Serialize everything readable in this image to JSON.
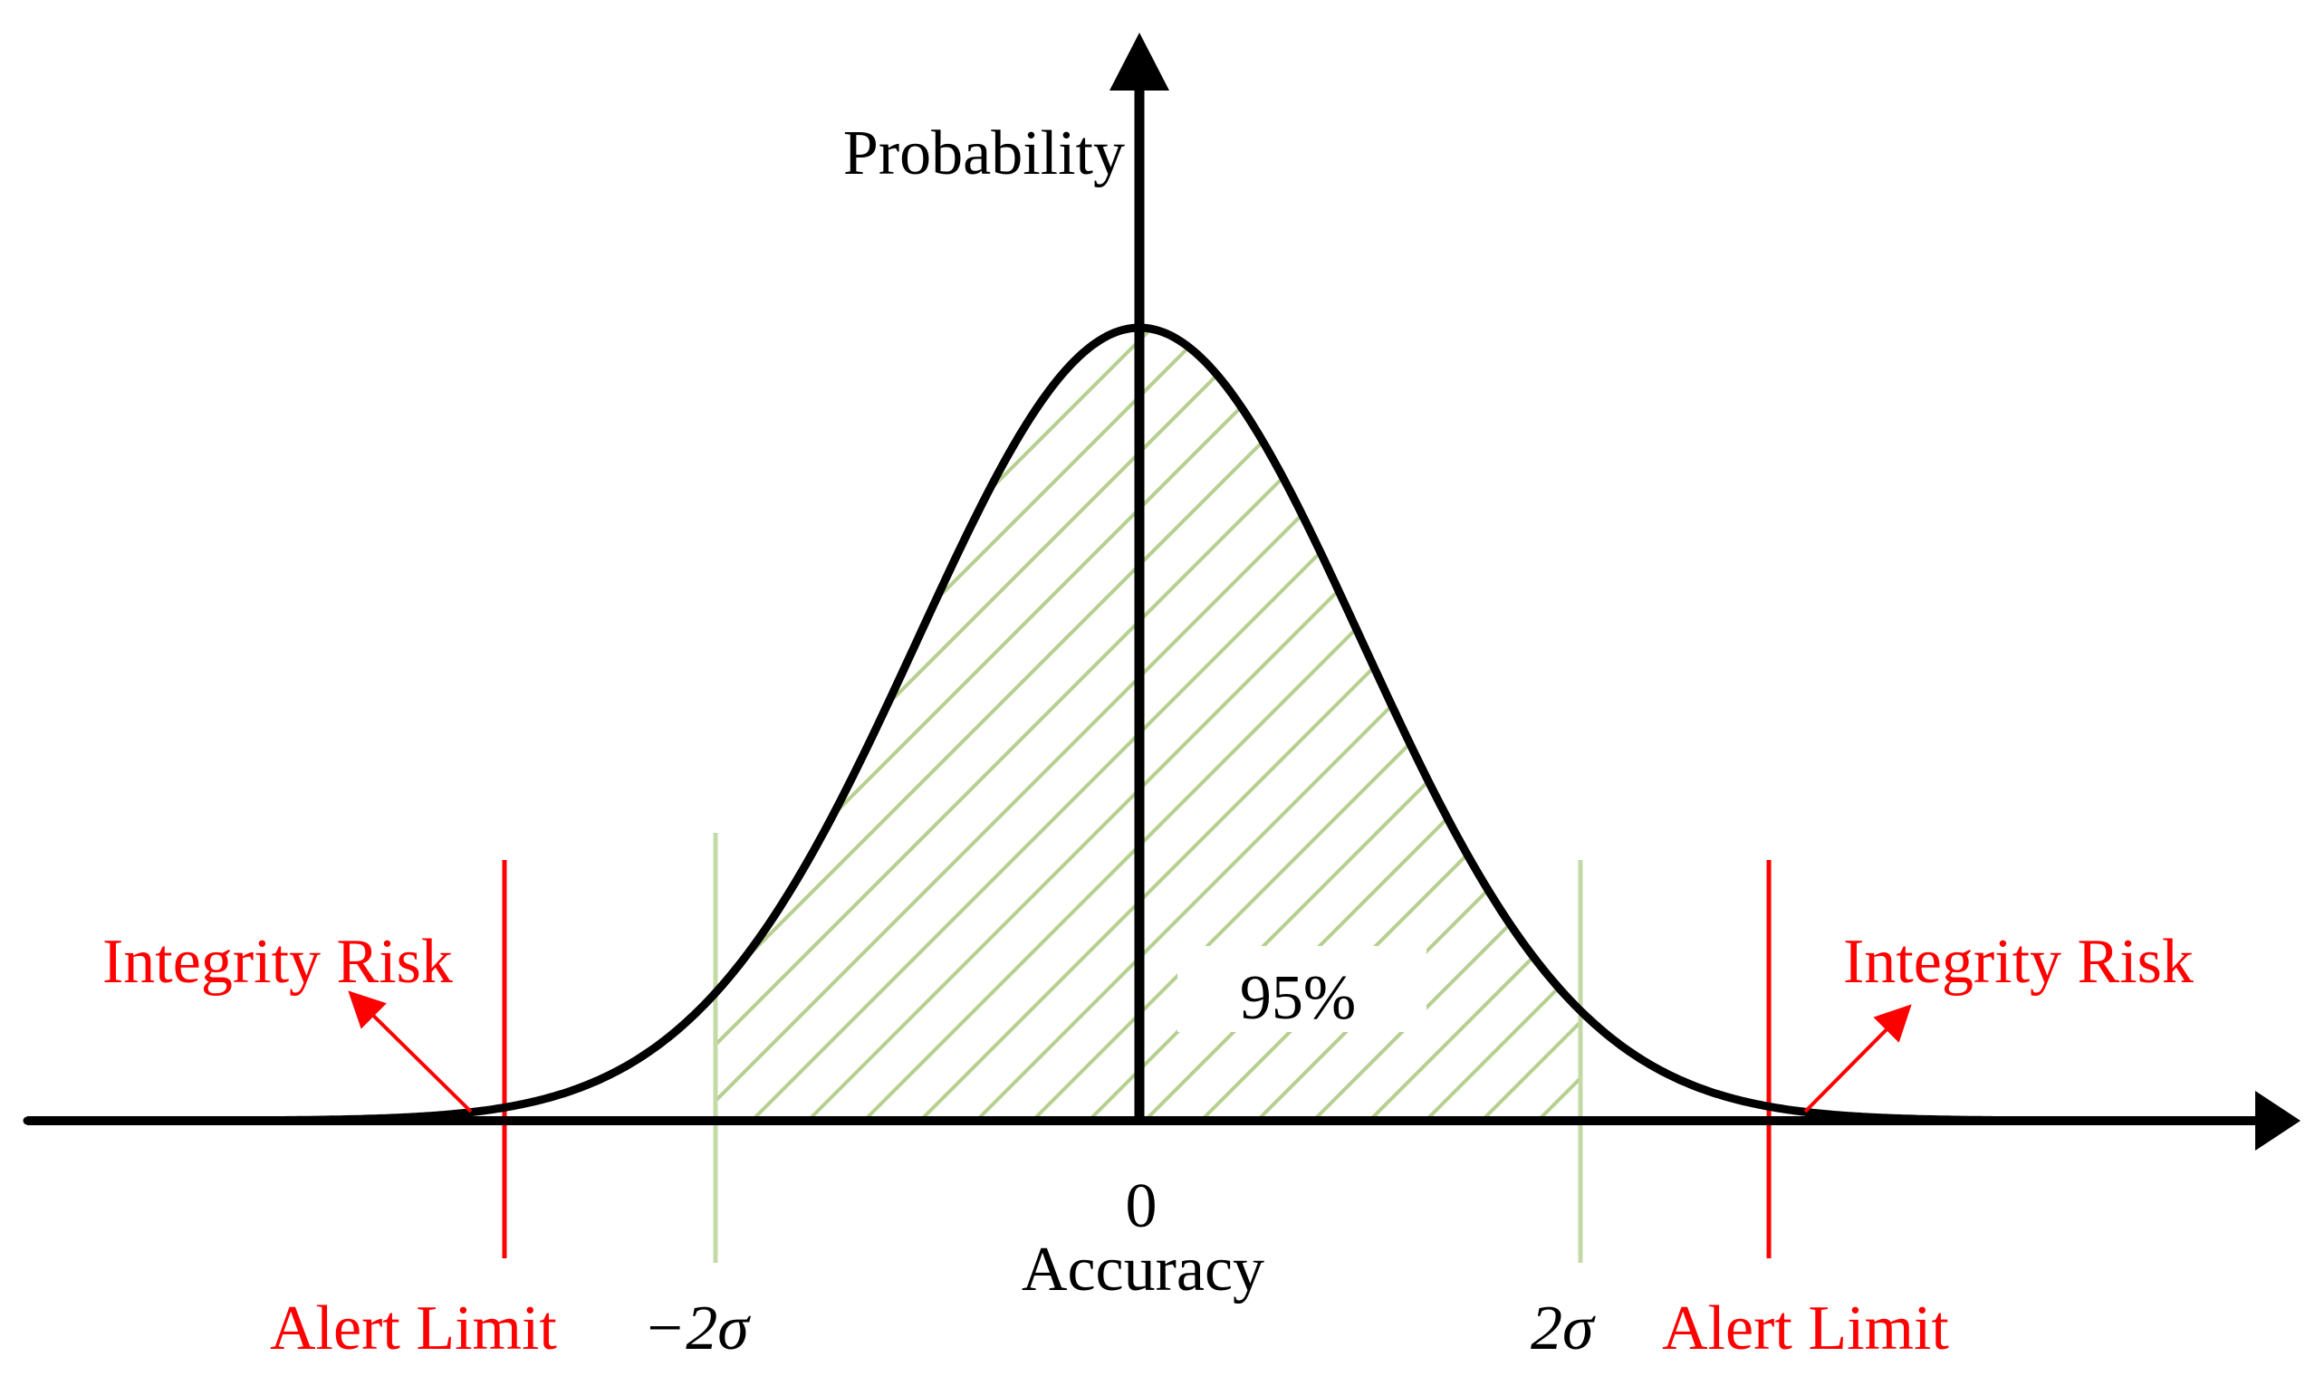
{
  "labels": {
    "y_axis": "Probability",
    "x_axis": "Accuracy",
    "origin": "0",
    "percent": "95%",
    "integrity_risk_left": "Integrity Risk",
    "integrity_risk_right": "Integrity Risk",
    "alert_limit_left": "Alert Limit",
    "alert_limit_right": "Alert Limit",
    "neg_two_sigma": "−2σ",
    "pos_two_sigma": "2σ"
  },
  "colors": {
    "axis": "#000000",
    "curve": "#000000",
    "alert_limit": "#ff0000",
    "integrity_risk": "#ff0000",
    "sigma_bound": "#c3d9a6",
    "hatch": "#b5d08f"
  }
}
